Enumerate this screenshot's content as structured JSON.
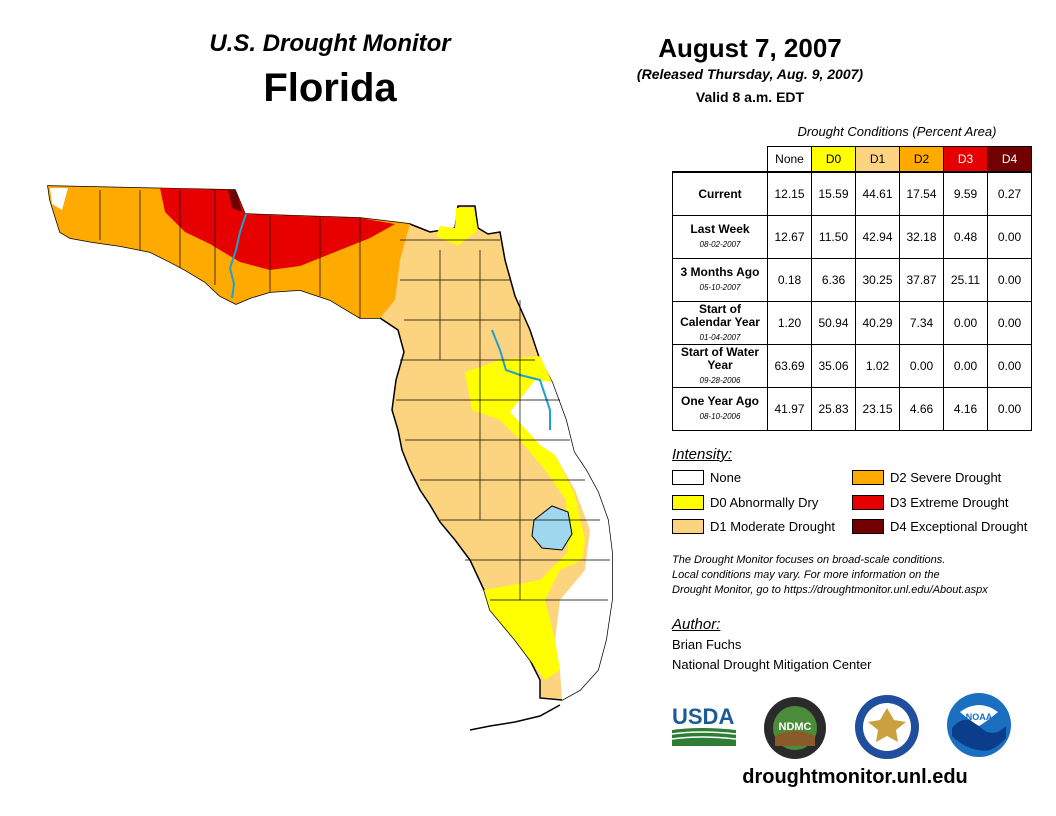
{
  "header": {
    "monitor_title": "U.S. Drought Monitor",
    "state": "Florida"
  },
  "date": {
    "title": "August 7, 2007",
    "released": "(Released Thursday, Aug. 9, 2007)",
    "valid": "Valid 8 a.m. EDT"
  },
  "table": {
    "caption": "Drought Conditions (Percent Area)",
    "columns": [
      "None",
      "D0",
      "D1",
      "D2",
      "D3",
      "D4"
    ],
    "column_colors": [
      "#ffffff",
      "#ffff00",
      "#fcd37f",
      "#ffaa00",
      "#e60000",
      "#730000"
    ],
    "rows": [
      {
        "label": "Current",
        "date": "",
        "values": [
          "12.15",
          "15.59",
          "44.61",
          "17.54",
          "9.59",
          "0.27"
        ]
      },
      {
        "label": "Last Week",
        "date": "08-02-2007",
        "values": [
          "12.67",
          "11.50",
          "42.94",
          "32.18",
          "0.48",
          "0.00"
        ]
      },
      {
        "label": "3 Months Ago",
        "date": "05-10-2007",
        "values": [
          "0.18",
          "6.36",
          "30.25",
          "37.87",
          "25.11",
          "0.00"
        ]
      },
      {
        "label": "Start of Calendar Year",
        "date": "01-04-2007",
        "values": [
          "1.20",
          "50.94",
          "40.29",
          "7.34",
          "0.00",
          "0.00"
        ]
      },
      {
        "label": "Start of Water Year",
        "date": "09-28-2006",
        "values": [
          "63.69",
          "35.06",
          "1.02",
          "0.00",
          "0.00",
          "0.00"
        ]
      },
      {
        "label": "One Year Ago",
        "date": "08-10-2006",
        "values": [
          "41.97",
          "25.83",
          "23.15",
          "4.66",
          "4.16",
          "0.00"
        ]
      }
    ]
  },
  "legend": {
    "heading": "Intensity:",
    "items": [
      {
        "label": "None",
        "color": "#ffffff"
      },
      {
        "label": "D0 Abnormally Dry",
        "color": "#ffff00"
      },
      {
        "label": "D1 Moderate Drought",
        "color": "#fcd37f"
      },
      {
        "label": "D2 Severe Drought",
        "color": "#ffaa00"
      },
      {
        "label": "D3 Extreme Drought",
        "color": "#e60000"
      },
      {
        "label": "D4 Exceptional Drought",
        "color": "#730000"
      }
    ]
  },
  "note": {
    "line1": "The Drought Monitor focuses on broad-scale conditions.",
    "line2": "Local conditions may vary. For more information on the",
    "line3": "Drought Monitor, go to https://droughtmonitor.unl.edu/About.aspx"
  },
  "author": {
    "heading": "Author:",
    "name": "Brian Fuchs",
    "org": "National Drought Mitigation Center"
  },
  "logos": {
    "usda": "USDA",
    "ndmc": "NDMC",
    "noaa": "NOAA"
  },
  "footer": {
    "url": "droughtmonitor.unl.edu"
  }
}
